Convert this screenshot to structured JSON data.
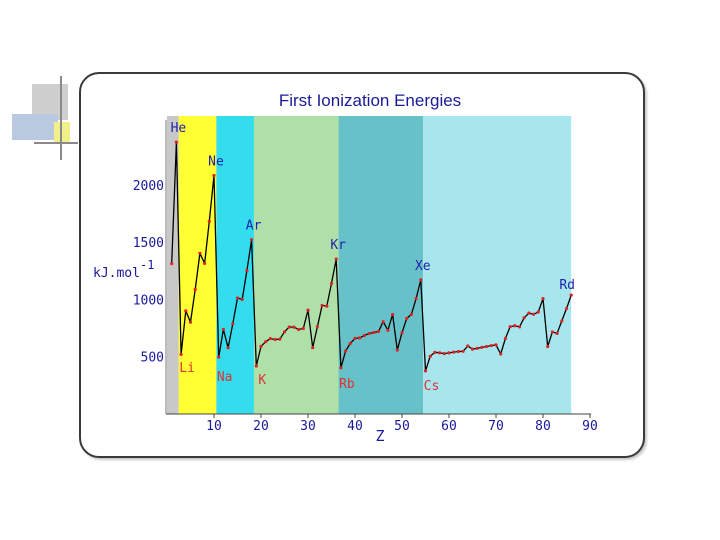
{
  "chart_data": {
    "type": "line",
    "title": "First Ionization Energies",
    "xlabel": "Z",
    "ylabel": "kJ.mol",
    "ylabel_sup": "-1",
    "xlim": [
      0,
      90
    ],
    "ylim": [
      0,
      2600
    ],
    "x_ticks": [
      10,
      20,
      30,
      40,
      50,
      60,
      70,
      80,
      90
    ],
    "x_tick_labels": [
      "10",
      "20",
      "30",
      "40",
      "50",
      "60",
      "70",
      "80",
      "90"
    ],
    "y_ticks": [
      500,
      1000,
      1500,
      2000
    ],
    "y_tick_labels": [
      "500",
      "1000",
      "1500",
      "2000"
    ],
    "grid": false,
    "line_color": "#000000",
    "marker_color": "#dd2222",
    "period_bands": [
      {
        "from": 0,
        "to": 2.5,
        "color": "#c8c8c8"
      },
      {
        "from": 2.5,
        "to": 10.5,
        "color": "#ffff33"
      },
      {
        "from": 10.5,
        "to": 18.5,
        "color": "#33ddee"
      },
      {
        "from": 18.5,
        "to": 36.5,
        "color": "#aee0a8"
      },
      {
        "from": 36.5,
        "to": 54.5,
        "color": "#66c2c8"
      },
      {
        "from": 54.5,
        "to": 86,
        "color": "#a8e6ee"
      }
    ],
    "annotations": [
      {
        "text": "He",
        "z": 2,
        "group": "noble",
        "color": "#2222aa"
      },
      {
        "text": "Ne",
        "z": 10,
        "group": "noble",
        "color": "#2222aa"
      },
      {
        "text": "Ar",
        "z": 18,
        "group": "noble",
        "color": "#2222aa"
      },
      {
        "text": "Kr",
        "z": 36,
        "group": "noble",
        "color": "#2222aa"
      },
      {
        "text": "Xe",
        "z": 54,
        "group": "noble",
        "color": "#2222aa"
      },
      {
        "text": "Rd",
        "z": 86,
        "group": "noble",
        "color": "#2222aa"
      },
      {
        "text": "Li",
        "z": 3,
        "group": "alkali",
        "color": "#dd3333"
      },
      {
        "text": "Na",
        "z": 11,
        "group": "alkali",
        "color": "#dd3333"
      },
      {
        "text": "K",
        "z": 19,
        "group": "alkali",
        "color": "#dd3333"
      },
      {
        "text": "Rb",
        "z": 37,
        "group": "alkali",
        "color": "#dd3333"
      },
      {
        "text": "Cs",
        "z": 55,
        "group": "alkali",
        "color": "#dd3333"
      }
    ],
    "series": [
      {
        "x": [
          1,
          2,
          3,
          4,
          5,
          6,
          7,
          8,
          9,
          10,
          11,
          12,
          13,
          14,
          15,
          16,
          17,
          18,
          19,
          20,
          21,
          22,
          23,
          24,
          25,
          26,
          27,
          28,
          29,
          30,
          31,
          32,
          33,
          34,
          35,
          36,
          37,
          38,
          39,
          40,
          41,
          42,
          43,
          44,
          45,
          46,
          47,
          48,
          49,
          50,
          51,
          52,
          53,
          54,
          55,
          56,
          57,
          58,
          59,
          60,
          61,
          62,
          63,
          64,
          65,
          66,
          67,
          68,
          69,
          70,
          71,
          72,
          73,
          74,
          75,
          76,
          77,
          78,
          79,
          80,
          81,
          82,
          83,
          84,
          85,
          86
        ],
        "values": [
          1312,
          2372,
          520,
          900,
          801,
          1086,
          1402,
          1314,
          1681,
          2081,
          496,
          738,
          578,
          787,
          1012,
          1000,
          1251,
          1521,
          419,
          590,
          631,
          658,
          650,
          653,
          717,
          759,
          758,
          737,
          746,
          906,
          579,
          762,
          947,
          941,
          1140,
          1351,
          403,
          550,
          616,
          660,
          664,
          685,
          702,
          711,
          720,
          805,
          731,
          868,
          558,
          709,
          834,
          869,
          1008,
          1170,
          376,
          503,
          538,
          534,
          527,
          533,
          540,
          545,
          547,
          593,
          566,
          573,
          581,
          589,
          597,
          603,
          524,
          659,
          761,
          770,
          760,
          840,
          880,
          870,
          890,
          1007,
          589,
          716,
          703,
          812,
          920,
          1037
        ]
      }
    ]
  }
}
